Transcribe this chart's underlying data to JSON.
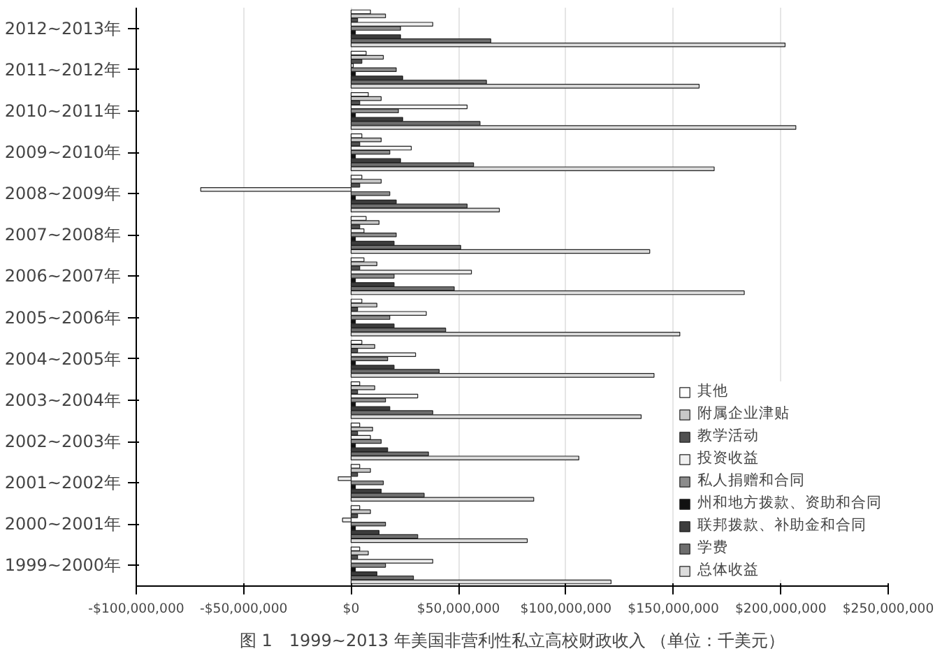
{
  "chart_data": {
    "type": "bar",
    "orientation": "horizontal",
    "title": "图 1　1999~2013 年美国非营利性私立高校财政收入 （单位：千美元）",
    "categories": [
      "2012~2013年",
      "2011~2012年",
      "2010~2011年",
      "2009~2010年",
      "2008~2009年",
      "2007~2008年",
      "2006~2007年",
      "2005~2006年",
      "2004~2005年",
      "2003~2004年",
      "2002~2003年",
      "2001~2002年",
      "2000~2001年",
      "1999~2000年"
    ],
    "series": [
      {
        "name": "其他",
        "color": "#ffffff",
        "values": [
          9000000,
          7000000,
          8000000,
          5000000,
          5000000,
          7000000,
          6000000,
          5000000,
          5000000,
          4000000,
          4000000,
          4000000,
          4000000,
          4000000
        ]
      },
      {
        "name": "附属企业津贴",
        "color": "#c8c8c8",
        "values": [
          16000000,
          15000000,
          14000000,
          14000000,
          14000000,
          13000000,
          12000000,
          12000000,
          11000000,
          11000000,
          10000000,
          9000000,
          9000000,
          8000000
        ]
      },
      {
        "name": "教学活动",
        "color": "#505050",
        "values": [
          3000000,
          5000000,
          4000000,
          4000000,
          4000000,
          4000000,
          4000000,
          3000000,
          3000000,
          3000000,
          3000000,
          3000000,
          3000000,
          3000000
        ]
      },
      {
        "name": "投资收益",
        "color": "#f0f0f0",
        "values": [
          38000000,
          1000000,
          54000000,
          28000000,
          -70000000,
          6000000,
          56000000,
          35000000,
          30000000,
          31000000,
          9000000,
          -6000000,
          -4000000,
          38000000
        ]
      },
      {
        "name": "私人捐赠和合同",
        "color": "#8c8c8c",
        "values": [
          23000000,
          21000000,
          22000000,
          18000000,
          18000000,
          21000000,
          20000000,
          18000000,
          17000000,
          16000000,
          14000000,
          15000000,
          16000000,
          16000000
        ]
      },
      {
        "name": "州和地方拨款、资助和合同",
        "color": "#111111",
        "values": [
          2000000,
          2000000,
          2000000,
          2000000,
          2000000,
          2000000,
          2000000,
          2000000,
          2000000,
          2000000,
          2000000,
          2000000,
          2000000,
          2000000
        ]
      },
      {
        "name": "联邦拨款、补助金和合同",
        "color": "#3c3c3c",
        "values": [
          23000000,
          24000000,
          24000000,
          23000000,
          21000000,
          20000000,
          20000000,
          20000000,
          20000000,
          18000000,
          17000000,
          14000000,
          13000000,
          12000000
        ]
      },
      {
        "name": "学费",
        "color": "#6e6e6e",
        "values": [
          65000000,
          63000000,
          60000000,
          57000000,
          54000000,
          51000000,
          48000000,
          44000000,
          41000000,
          38000000,
          36000000,
          34000000,
          31000000,
          29000000
        ]
      },
      {
        "name": "总体收益",
        "color": "#dcdcdc",
        "values": [
          202000000,
          162000000,
          207000000,
          169000000,
          69000000,
          139000000,
          183000000,
          153000000,
          141000000,
          135000000,
          106000000,
          85000000,
          82000000,
          121000000
        ]
      }
    ],
    "xlim": [
      -100000000,
      250000000
    ],
    "xticks": [
      {
        "value": -100000000,
        "label": "-$100,000,000"
      },
      {
        "value": -50000000,
        "label": "-$50,000,000"
      },
      {
        "value": 0,
        "label": "$0"
      },
      {
        "value": 50000000,
        "label": "$50,000,000"
      },
      {
        "value": 100000000,
        "label": "$100,000,000"
      },
      {
        "value": 150000000,
        "label": "$150,000,000"
      },
      {
        "value": 200000000,
        "label": "$200,000,000"
      },
      {
        "value": 250000000,
        "label": "$250,000,000"
      }
    ],
    "grid": "x",
    "legend": "bottom right"
  }
}
